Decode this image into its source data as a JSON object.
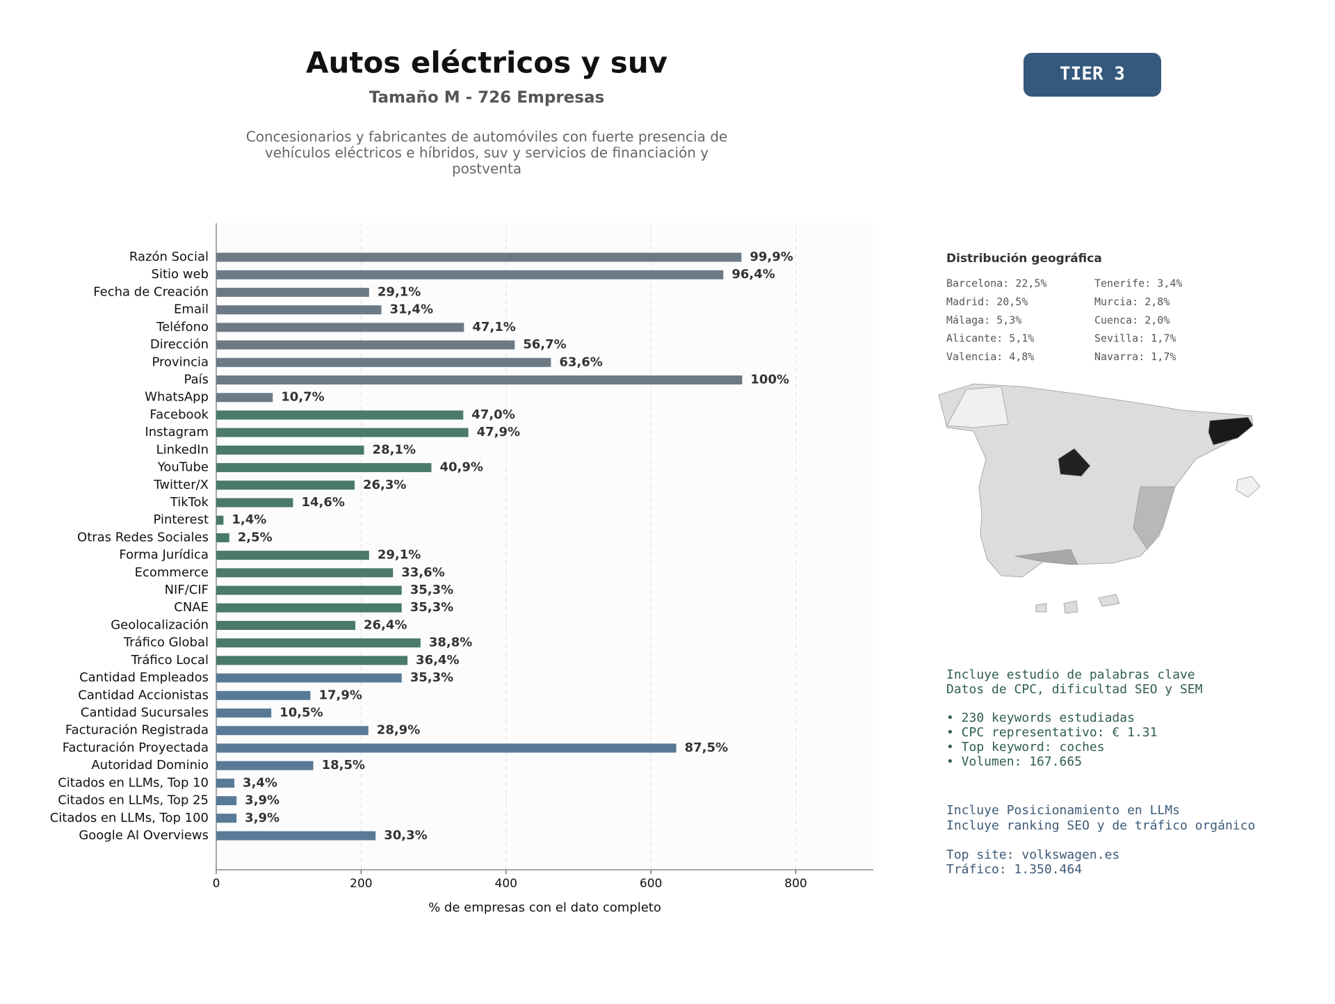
{
  "header": {
    "title": "Autos eléctricos y suv",
    "subtitle": "Tamaño M - 726 Empresas",
    "description": [
      "Concesionarios y fabricantes de automóviles con fuerte presencia de",
      "vehículos eléctricos e híbridos, suv y servicios de financiación y",
      "postventa"
    ]
  },
  "badge": "TIER 3",
  "chart_data": {
    "type": "bar",
    "orientation": "horizontal",
    "xlabel": "% de empresas con el dato completo",
    "categories": [
      "Razón Social",
      "Sitio web",
      "Fecha de Creación",
      "Email",
      "Teléfono",
      "Dirección",
      "Provincia",
      "País",
      "WhatsApp",
      "Facebook",
      "Instagram",
      "LinkedIn",
      "YouTube",
      "Twitter/X",
      "TikTok",
      "Pinterest",
      "Otras Redes Sociales",
      "Forma Jurídica",
      "Ecommerce",
      "NIF/CIF",
      "CNAE",
      "Geolocalización",
      "Tráfico Global",
      "Tráfico Local",
      "Cantidad Empleados",
      "Cantidad Accionistas",
      "Cantidad Sucursales",
      "Facturación Registrada",
      "Facturación Proyectada",
      "Autoridad Dominio",
      "Citados en LLMs, Top 10",
      "Citados en LLMs, Top 25",
      "Citados en LLMs, Top 100",
      "Google AI Overviews"
    ],
    "values": [
      725,
      700,
      211,
      228,
      342,
      412,
      462,
      726,
      78,
      341,
      348,
      204,
      297,
      191,
      106,
      10,
      18,
      211,
      244,
      256,
      256,
      192,
      282,
      264,
      256,
      130,
      76,
      210,
      635,
      134,
      25,
      28,
      28,
      220
    ],
    "value_labels": [
      "99,9%",
      "96,4%",
      "29,1%",
      "31,4%",
      "47,1%",
      "56,7%",
      "63,6%",
      "100%",
      "10,7%",
      "47,0%",
      "47,9%",
      "28,1%",
      "40,9%",
      "26,3%",
      "14,6%",
      "1,4%",
      "2,5%",
      "29,1%",
      "33,6%",
      "35,3%",
      "35,3%",
      "26,4%",
      "38,8%",
      "36,4%",
      "35,3%",
      "17,9%",
      "10,5%",
      "28,9%",
      "87,5%",
      "18,5%",
      "3,4%",
      "3,9%",
      "3,9%",
      "30,3%"
    ],
    "colors": [
      "#6c7a86",
      "#6c7a86",
      "#6c7a86",
      "#6c7a86",
      "#6c7a86",
      "#6c7a86",
      "#6c7a86",
      "#6c7a86",
      "#6c7a86",
      "#4a7a68",
      "#4a7a68",
      "#4a7a68",
      "#4a7a68",
      "#4a7a68",
      "#4a7a68",
      "#4a7a68",
      "#4a7a68",
      "#4a7a68",
      "#4a7a68",
      "#4a7a68",
      "#4a7a68",
      "#4a7a68",
      "#4a7a68",
      "#4a7a68",
      "#587a96",
      "#587a96",
      "#587a96",
      "#587a96",
      "#587a96",
      "#587a96",
      "#587a96",
      "#587a96",
      "#587a96",
      "#587a96"
    ],
    "xlim": [
      0,
      907
    ],
    "xticks": [
      0,
      200,
      400,
      600,
      800
    ],
    "grid": true
  },
  "geo": {
    "title": "Distribución geográfica",
    "items": [
      "Barcelona: 22,5%",
      "Madrid: 20,5%",
      "Málaga: 5,3%",
      "Alicante: 5,1%",
      "Valencia: 4,8%",
      "Tenerife: 3,4%",
      "Murcia: 2,8%",
      "Cuenca: 2,0%",
      "Sevilla: 1,7%",
      "Navarra: 1,7%"
    ]
  },
  "keywords": [
    "Incluye estudio de palabras clave",
    "Datos de CPC, dificultad SEO y SEM",
    "• 230 keywords estudiadas",
    "• CPC representativo: € 1.31",
    "• Top keyword: coches",
    "• Volumen: 167.665"
  ],
  "llm": [
    "Incluye Posicionamiento en LLMs",
    "Incluye ranking SEO y de tráfico orgánico",
    "Top site: volkswagen.es",
    "Tráfico: 1.350.464"
  ]
}
